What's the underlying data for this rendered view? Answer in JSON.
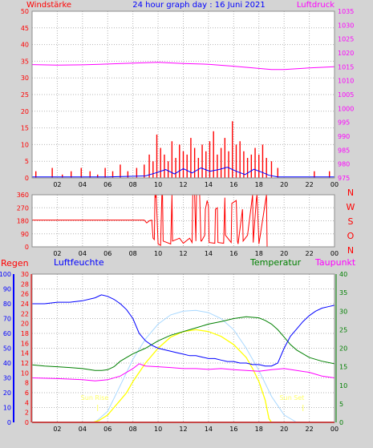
{
  "title": "24 hour graph day : 16 Juni 2021",
  "colors": {
    "background": "#d4d4d4",
    "plot_bg": "#ffffff",
    "grid": "#b4b4b4",
    "wind": "#ff0000",
    "wind_avg": "#0000ff",
    "gust_band": "#00aa00",
    "pressure": "#ff00ff",
    "direction": "#ff0000",
    "rain": "#ff0000",
    "humidity": "#0000ff",
    "temperature": "#008000",
    "dewpoint": "#ff00ff",
    "solar": "#ffff00",
    "solar_max": "#a8d8ff",
    "annotation": "#ffff66",
    "title": "#0000ff"
  },
  "chart_data": [
    {
      "type": "bar",
      "id": "wind",
      "left_title": "Windstärke",
      "right_title": "Luftdruck",
      "x_ticks": [
        "02",
        "04",
        "06",
        "08",
        "10",
        "12",
        "14",
        "16",
        "18",
        "20",
        "22",
        "00"
      ],
      "xlim": [
        0,
        24
      ],
      "ylim_left": [
        0,
        50
      ],
      "y_ticks_left": [
        0,
        5,
        10,
        15,
        20,
        25,
        30,
        35,
        40,
        45,
        50
      ],
      "ylim_right": [
        975,
        1035
      ],
      "y_ticks_right": [
        975,
        980,
        985,
        990,
        995,
        1000,
        1005,
        1010,
        1015,
        1020,
        1025,
        1030,
        1035
      ],
      "grid": true,
      "series": [
        {
          "name": "Windstärke",
          "kind": "bars",
          "x": [
            0.3,
            1.6,
            2.4,
            3.1,
            3.9,
            4.6,
            5.2,
            5.8,
            6.4,
            7.0,
            7.6,
            8.3,
            8.9,
            9.3,
            9.6,
            9.9,
            10.2,
            10.5,
            10.8,
            11.1,
            11.4,
            11.7,
            12.0,
            12.3,
            12.6,
            12.9,
            13.2,
            13.5,
            13.8,
            14.1,
            14.4,
            14.7,
            15.0,
            15.3,
            15.6,
            15.9,
            16.2,
            16.5,
            16.8,
            17.1,
            17.4,
            17.7,
            18.0,
            18.3,
            18.6,
            19.0,
            19.5,
            22.4,
            23.6
          ],
          "values": [
            2,
            3,
            1,
            2,
            3,
            2,
            1,
            3,
            2,
            4,
            2,
            3,
            4,
            7,
            5,
            13,
            9,
            7,
            5,
            11,
            6,
            10,
            8,
            7,
            12,
            9,
            6,
            10,
            8,
            11,
            14,
            7,
            9,
            12,
            8,
            17,
            10,
            11,
            8,
            6,
            7,
            9,
            7,
            10,
            6,
            5,
            3,
            2,
            2
          ]
        },
        {
          "name": "Mittelwind",
          "kind": "line",
          "x": [
            0,
            6,
            9,
            9.8,
            10.6,
            11.3,
            12.0,
            12.7,
            13.4,
            14.1,
            14.8,
            15.5,
            16.2,
            16.9,
            17.6,
            18.3,
            18.8,
            19.5,
            24
          ],
          "values": [
            0.3,
            0.3,
            0.6,
            1.5,
            2.5,
            1.2,
            2.8,
            1.5,
            3.0,
            2.0,
            2.5,
            3.2,
            2.0,
            1.0,
            2.6,
            1.6,
            0.8,
            0.3,
            0.3
          ]
        },
        {
          "name": "Luftdruck",
          "kind": "line",
          "axis": "right",
          "x": [
            0,
            2,
            4,
            6,
            8,
            10,
            12,
            14,
            16,
            18,
            19,
            20,
            22,
            24
          ],
          "values": [
            1015.8,
            1015.6,
            1015.7,
            1016.0,
            1016.3,
            1016.6,
            1016.2,
            1015.9,
            1015.2,
            1014.4,
            1014.0,
            1014.0,
            1014.6,
            1015.0
          ]
        }
      ]
    },
    {
      "type": "line",
      "id": "direction",
      "x_ticks": [
        "02",
        "04",
        "06",
        "08",
        "10",
        "12",
        "14",
        "16",
        "18",
        "20",
        "22",
        "00"
      ],
      "xlim": [
        0,
        24
      ],
      "ylim": [
        0,
        360
      ],
      "y_ticks": [
        0,
        90,
        180,
        270,
        360
      ],
      "right_labels": [
        "N",
        "W",
        "S",
        "O",
        "N"
      ],
      "grid": true,
      "series": [
        {
          "name": "Windrichtung",
          "x": [
            0,
            8.9,
            9.1,
            9.3,
            9.5,
            9.6,
            9.7,
            9.75,
            9.8,
            9.85,
            10.0,
            10.2,
            10.3,
            10.35,
            10.4,
            11.0,
            11.1,
            11.15,
            11.7,
            12.0,
            12.5,
            12.7,
            12.75,
            12.9,
            13.0,
            13.05,
            13.3,
            13.4,
            13.45,
            13.7,
            13.75,
            13.9,
            14.0,
            14.05,
            14.5,
            14.55,
            14.7,
            14.75,
            15.2,
            15.3,
            15.35,
            15.8,
            15.85,
            16.2,
            16.3,
            16.35,
            16.7,
            16.75,
            17.1,
            17.5,
            17.55,
            17.8,
            17.85,
            18.0,
            18.6,
            18.65,
            18.9,
            24
          ],
          "values": [
            185,
            185,
            165,
            180,
            185,
            60,
            50,
            360,
            340,
            360,
            20,
            10,
            360,
            360,
            40,
            20,
            360,
            40,
            60,
            25,
            60,
            30,
            360,
            360,
            40,
            360,
            360,
            40,
            40,
            80,
            260,
            320,
            280,
            30,
            25,
            260,
            270,
            30,
            25,
            340,
            80,
            30,
            300,
            320,
            40,
            20,
            260,
            40,
            80,
            360,
            30,
            330,
            360,
            20,
            360,
            0,
            0,
            0
          ]
        }
      ]
    },
    {
      "type": "line",
      "id": "climate",
      "labels": {
        "rain": "Regen",
        "humidity": "Luftfeuchte",
        "temperature": "Temperatur",
        "dewpoint": "Taupunkt",
        "sunrise": "Sun Rise",
        "sunset": "Sun Set"
      },
      "x_ticks": [
        "02",
        "04",
        "06",
        "08",
        "10",
        "12",
        "14",
        "16",
        "18",
        "20",
        "22",
        "00"
      ],
      "xlim": [
        0,
        24
      ],
      "axis_humidity": [
        0,
        100
      ],
      "axis_humidity_ticks": [
        0,
        10,
        20,
        30,
        40,
        50,
        60,
        70,
        80,
        90,
        100
      ],
      "axis_rain": [
        0,
        30
      ],
      "axis_rain_ticks": [
        0,
        2,
        4,
        6,
        8,
        10,
        12,
        14,
        16,
        18,
        20,
        22,
        24,
        26,
        28,
        30
      ],
      "axis_temp": [
        0,
        40
      ],
      "axis_temp_ticks": [
        0,
        5,
        10,
        15,
        20,
        25,
        30,
        35,
        40
      ],
      "grid": true,
      "sunrise_hour": 5.2,
      "sunset_hour": 21.5,
      "series": [
        {
          "name": "Luftfeuchte",
          "axis": "humidity",
          "x": [
            0,
            1,
            2,
            3,
            4,
            5,
            5.5,
            6,
            6.5,
            7,
            7.5,
            8,
            8.5,
            9,
            9.5,
            10,
            10.5,
            11,
            11.5,
            12,
            12.5,
            13,
            13.5,
            14,
            14.5,
            15,
            15.5,
            16,
            16.5,
            17,
            17.5,
            18,
            18.5,
            19,
            19.5,
            20,
            20.5,
            21,
            21.5,
            22,
            22.5,
            23,
            23.5,
            24
          ],
          "values": [
            80,
            80,
            81,
            81,
            82,
            84,
            86,
            85,
            83,
            80,
            76,
            70,
            60,
            55,
            52,
            50,
            49,
            48,
            47,
            46,
            45,
            45,
            44,
            43,
            43,
            42,
            41,
            41,
            40,
            40,
            39,
            39,
            38,
            38,
            40,
            50,
            58,
            63,
            68,
            72,
            75,
            77,
            78,
            79
          ]
        },
        {
          "name": "Temperatur",
          "axis": "temp",
          "x": [
            0,
            1,
            2,
            3,
            4,
            5,
            5.5,
            6,
            6.5,
            7,
            7.5,
            8,
            9,
            10,
            11,
            12,
            13,
            14,
            15,
            16,
            17,
            18,
            18.5,
            19,
            19.5,
            20,
            20.5,
            21,
            22,
            23,
            24
          ],
          "values": [
            15.5,
            15.2,
            15.0,
            14.8,
            14.5,
            14.0,
            14.0,
            14.2,
            15.0,
            16.5,
            17.5,
            18.5,
            20,
            22,
            23.5,
            24.5,
            25.5,
            26.5,
            27.2,
            28.0,
            28.5,
            28.2,
            27.5,
            26.5,
            25,
            23,
            21,
            19.5,
            17.5,
            16.5,
            15.8
          ]
        },
        {
          "name": "Taupunkt",
          "axis": "temp",
          "x": [
            0,
            2,
            4,
            5,
            6,
            7,
            8,
            8.5,
            9,
            10,
            11,
            12,
            13,
            14,
            15,
            16,
            17,
            18,
            19,
            20,
            21,
            22,
            23,
            24
          ],
          "values": [
            12,
            11.8,
            11.5,
            11.2,
            11.5,
            12.5,
            14.5,
            15.8,
            15.2,
            15.0,
            14.8,
            14.5,
            14.5,
            14.3,
            14.5,
            14.2,
            14.0,
            13.8,
            14.2,
            14.5,
            14.0,
            13.5,
            12.5,
            12
          ]
        },
        {
          "name": "Solar",
          "axis": "temp",
          "x": [
            0,
            4.8,
            5.3,
            6.0,
            6.5,
            7.0,
            7.5,
            8.0,
            9.0,
            10.0,
            11.0,
            12.0,
            13.0,
            14.0,
            15.0,
            16.0,
            17.0,
            17.5,
            18.0,
            18.5,
            18.8,
            19.0,
            24
          ],
          "values": [
            0,
            0,
            0.5,
            2,
            4,
            6,
            8,
            11,
            16,
            20,
            23,
            24.5,
            25,
            24.5,
            23.2,
            21.0,
            17.5,
            14.5,
            11,
            6,
            1,
            0,
            0
          ]
        },
        {
          "name": "Solar max",
          "axis": "temp",
          "x": [
            5,
            6,
            7,
            8,
            9,
            10,
            11,
            12,
            13,
            14,
            15,
            16,
            17,
            18,
            19,
            20,
            21
          ],
          "values": [
            0,
            3,
            10,
            17,
            22.5,
            26.5,
            29,
            30,
            30.2,
            29.6,
            28,
            25,
            20,
            14,
            7,
            2,
            0
          ]
        },
        {
          "name": "Regen",
          "axis": "rain",
          "x": [
            0,
            24
          ],
          "values": [
            0,
            0
          ]
        }
      ]
    }
  ]
}
